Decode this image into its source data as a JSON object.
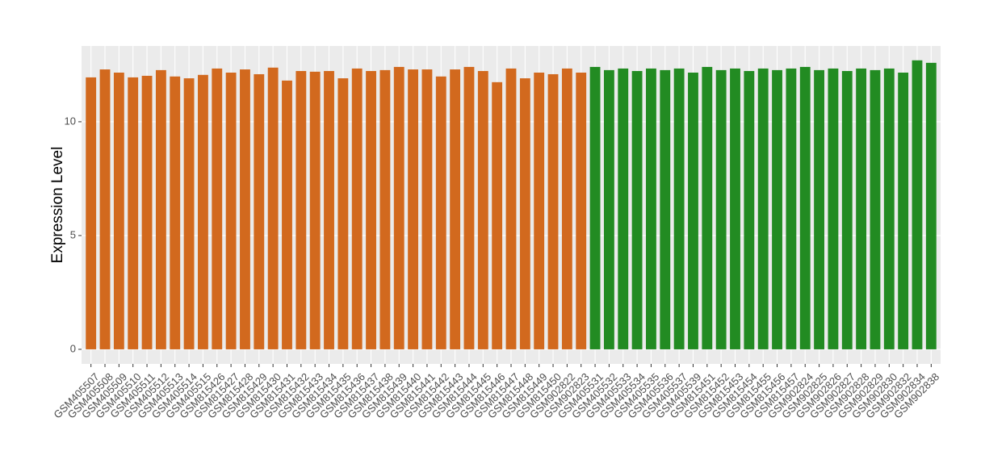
{
  "chart_data": {
    "type": "bar",
    "y_label": "Expression Level",
    "categories": [
      "GSM405507",
      "GSM405508",
      "GSM405509",
      "GSM405510",
      "GSM405511",
      "GSM405512",
      "GSM405513",
      "GSM405514",
      "GSM405515",
      "GSM815426",
      "GSM815427",
      "GSM815428",
      "GSM815429",
      "GSM815430",
      "GSM815431",
      "GSM815432",
      "GSM815433",
      "GSM815434",
      "GSM815435",
      "GSM815436",
      "GSM815437",
      "GSM815438",
      "GSM815439",
      "GSM815440",
      "GSM815441",
      "GSM815442",
      "GSM815443",
      "GSM815444",
      "GSM815445",
      "GSM815446",
      "GSM815447",
      "GSM815448",
      "GSM815449",
      "GSM815450",
      "GSM902822",
      "GSM902823",
      "GSM405531",
      "GSM405532",
      "GSM405533",
      "GSM405534",
      "GSM405535",
      "GSM405536",
      "GSM405537",
      "GSM405539",
      "GSM815451",
      "GSM815452",
      "GSM815453",
      "GSM815454",
      "GSM815455",
      "GSM815456",
      "GSM815457",
      "GSM902824",
      "GSM902825",
      "GSM902826",
      "GSM902827",
      "GSM902828",
      "GSM902829",
      "GSM902830",
      "GSM902832",
      "GSM902834",
      "GSM902838"
    ],
    "values": [
      11.95,
      12.3,
      12.16,
      11.95,
      12.02,
      12.27,
      11.99,
      11.91,
      12.06,
      12.34,
      12.16,
      12.3,
      12.09,
      12.38,
      11.81,
      12.23,
      12.2,
      12.23,
      11.91,
      12.34,
      12.23,
      12.27,
      12.41,
      12.3,
      12.3,
      11.99,
      12.3,
      12.41,
      12.23,
      11.74,
      12.34,
      11.91,
      12.16,
      12.09,
      12.34,
      12.16,
      12.41,
      12.27,
      12.34,
      12.23,
      12.34,
      12.27,
      12.34,
      12.16,
      12.41,
      12.27,
      12.34,
      12.23,
      12.34,
      12.27,
      12.34,
      12.41,
      12.27,
      12.34,
      12.23,
      12.34,
      12.27,
      12.34,
      12.16,
      12.7,
      12.59
    ],
    "colors": [
      "#d2691e",
      "#d2691e",
      "#d2691e",
      "#d2691e",
      "#d2691e",
      "#d2691e",
      "#d2691e",
      "#d2691e",
      "#d2691e",
      "#d2691e",
      "#d2691e",
      "#d2691e",
      "#d2691e",
      "#d2691e",
      "#d2691e",
      "#d2691e",
      "#d2691e",
      "#d2691e",
      "#d2691e",
      "#d2691e",
      "#d2691e",
      "#d2691e",
      "#d2691e",
      "#d2691e",
      "#d2691e",
      "#d2691e",
      "#d2691e",
      "#d2691e",
      "#d2691e",
      "#d2691e",
      "#d2691e",
      "#d2691e",
      "#d2691e",
      "#d2691e",
      "#d2691e",
      "#d2691e",
      "#228b22",
      "#228b22",
      "#228b22",
      "#228b22",
      "#228b22",
      "#228b22",
      "#228b22",
      "#228b22",
      "#228b22",
      "#228b22",
      "#228b22",
      "#228b22",
      "#228b22",
      "#228b22",
      "#228b22",
      "#228b22",
      "#228b22",
      "#228b22",
      "#228b22",
      "#228b22",
      "#228b22",
      "#228b22",
      "#228b22",
      "#228b22",
      "#228b22"
    ],
    "ylim": [
      -0.64,
      13.33
    ],
    "yticks": [
      0,
      5,
      10
    ],
    "grid": true
  }
}
